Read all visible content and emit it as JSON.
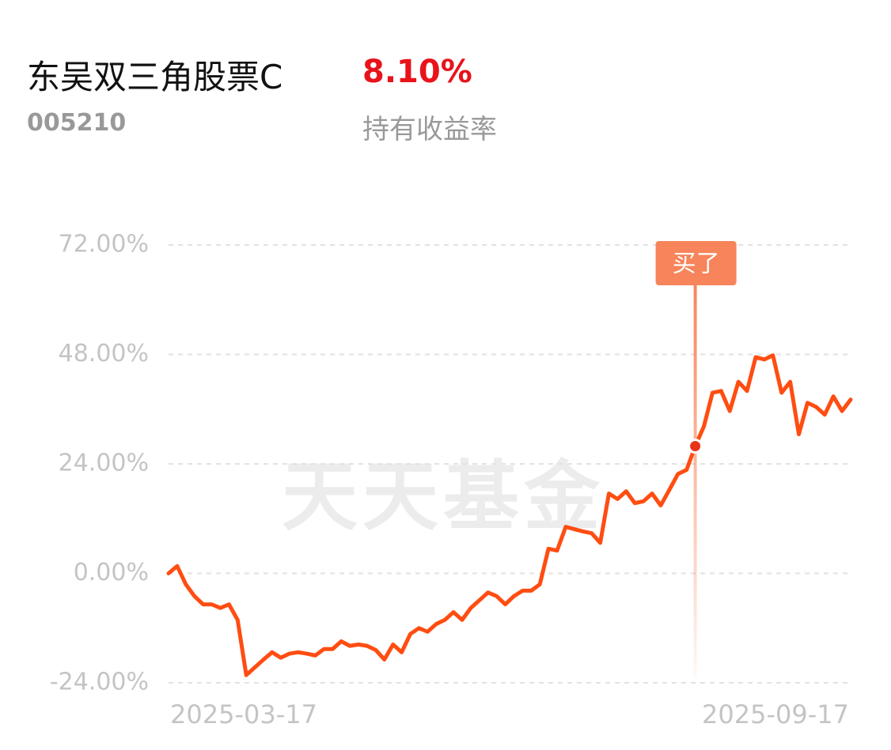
{
  "header": {
    "title": "东吴双三角股票C",
    "code": "005210",
    "return": "8.10%",
    "return_label": "持有收益率"
  },
  "chart_data": {
    "type": "line",
    "watermark": "天天基金",
    "categories": [
      "2025-03-17",
      null,
      null,
      null,
      null,
      null,
      null,
      null,
      null,
      null,
      null,
      null,
      null,
      null,
      null,
      null,
      null,
      null,
      null,
      null,
      null,
      null,
      null,
      null,
      null,
      null,
      null,
      null,
      null,
      null,
      null,
      null,
      null,
      null,
      null,
      null,
      null,
      null,
      null,
      null,
      null,
      null,
      null,
      null,
      null,
      null,
      null,
      null,
      null,
      null,
      null,
      null,
      null,
      null,
      null,
      null,
      null,
      null,
      null,
      null,
      null,
      null,
      null,
      null,
      null,
      null,
      null,
      null,
      null,
      null,
      null,
      null,
      null,
      null,
      null,
      null,
      null,
      null,
      null,
      "2025-09-17"
    ],
    "series": [
      {
        "name": "持有收益率",
        "color": "#ff4d12",
        "values": [
          0,
          1.6,
          -2.4,
          -5,
          -6.8,
          -6.8,
          -7.6,
          -6.8,
          -10.2,
          -22.3,
          -20.6,
          -18.9,
          -17.3,
          -18.5,
          -17.6,
          -17.3,
          -17.6,
          -18,
          -16.6,
          -16.6,
          -14.9,
          -15.9,
          -15.6,
          -15.9,
          -16.8,
          -18.9,
          -15.6,
          -17.3,
          -13.3,
          -12,
          -12.8,
          -11.1,
          -10.2,
          -8.5,
          -10.2,
          -7.6,
          -5.9,
          -4.2,
          -5,
          -6.8,
          -5,
          -3.8,
          -3.8,
          -2.4,
          5.4,
          5,
          10.2,
          9.7,
          9.2,
          8.8,
          6.7,
          17.5,
          16.3,
          18,
          15.4,
          15.8,
          17.5,
          14.9,
          18.3,
          21.8,
          22.7,
          27.9,
          32.2,
          39.6,
          40,
          35.6,
          42,
          40,
          47.4,
          46.9,
          47.8,
          39.6,
          42,
          30.5,
          37.4,
          36.5,
          34.8,
          38.8,
          35.6,
          38.1
        ]
      }
    ],
    "ylim": [
      -24,
      72
    ],
    "yticks": [
      {
        "value": -24,
        "label": "-24.00%"
      },
      {
        "value": 0,
        "label": "0.00%"
      },
      {
        "value": 24,
        "label": "24.00%"
      },
      {
        "value": 48,
        "label": "48.00%"
      },
      {
        "value": 72,
        "label": "72.00%"
      }
    ],
    "grid": true,
    "annotation": {
      "text": "买了",
      "point": 61,
      "color": "#f7845a"
    }
  }
}
